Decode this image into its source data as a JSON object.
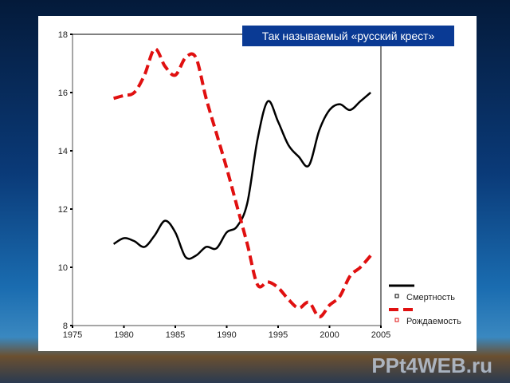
{
  "chart_data": {
    "type": "line",
    "title": "Так называемый «русский крест»",
    "xlabel": "",
    "ylabel": "",
    "xlim": [
      1975,
      2005
    ],
    "ylim": [
      8,
      18
    ],
    "xticks": [
      "1975",
      "1980",
      "1985",
      "1990",
      "1995",
      "2000",
      "2005"
    ],
    "yticks": [
      "8",
      "10",
      "12",
      "14",
      "16",
      "18"
    ],
    "legend_position": "bottom-right",
    "x": [
      1979,
      1980,
      1981,
      1982,
      1983,
      1984,
      1985,
      1986,
      1987,
      1988,
      1989,
      1990,
      1991,
      1992,
      1993,
      1994,
      1995,
      1996,
      1997,
      1998,
      1999,
      2000,
      2001,
      2002,
      2003,
      2004
    ],
    "series": [
      {
        "name": "Смертность",
        "color": "#000000",
        "style": "solid",
        "values": [
          10.8,
          11.0,
          10.9,
          10.7,
          11.1,
          11.6,
          11.2,
          10.35,
          10.4,
          10.7,
          10.65,
          11.2,
          11.4,
          12.2,
          14.4,
          15.7,
          15.0,
          14.2,
          13.8,
          13.5,
          14.7,
          15.4,
          15.6,
          15.4,
          15.7,
          16.0
        ]
      },
      {
        "name": "Рождаемость",
        "color": "#e01010",
        "style": "dashed",
        "values": [
          15.8,
          15.9,
          16.0,
          16.6,
          17.5,
          16.9,
          16.6,
          17.2,
          17.2,
          15.8,
          14.6,
          13.4,
          12.1,
          10.8,
          9.4,
          9.5,
          9.3,
          8.9,
          8.6,
          8.8,
          8.3,
          8.7,
          9.0,
          9.7,
          10.0,
          10.4
        ]
      }
    ]
  },
  "watermark": "PPt4WEB.ru"
}
